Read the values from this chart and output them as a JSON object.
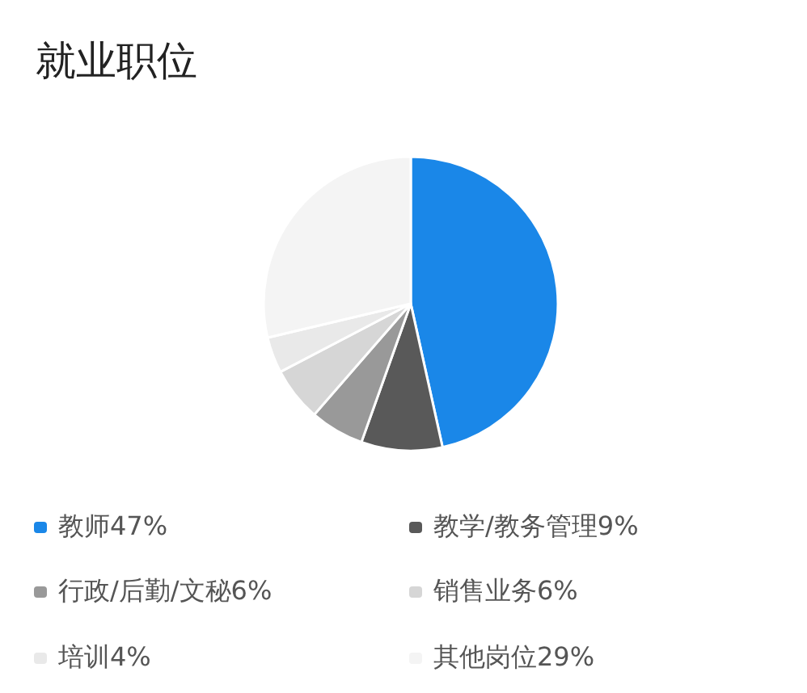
{
  "chart_data": {
    "type": "pie",
    "title": "就业职位",
    "categories": [
      "教师",
      "教学/教务管理",
      "行政/后勤/文秘",
      "销售业务",
      "培训",
      "其他岗位"
    ],
    "values": [
      47,
      9,
      6,
      6,
      4,
      29
    ],
    "value_labels": [
      "47%",
      "9%",
      "6%",
      "6%",
      "4%",
      "29%"
    ],
    "colors": [
      "#1a87e8",
      "#595959",
      "#999999",
      "#d6d6d6",
      "#e9e9e9",
      "#f4f4f4"
    ],
    "legend": "bottom"
  }
}
